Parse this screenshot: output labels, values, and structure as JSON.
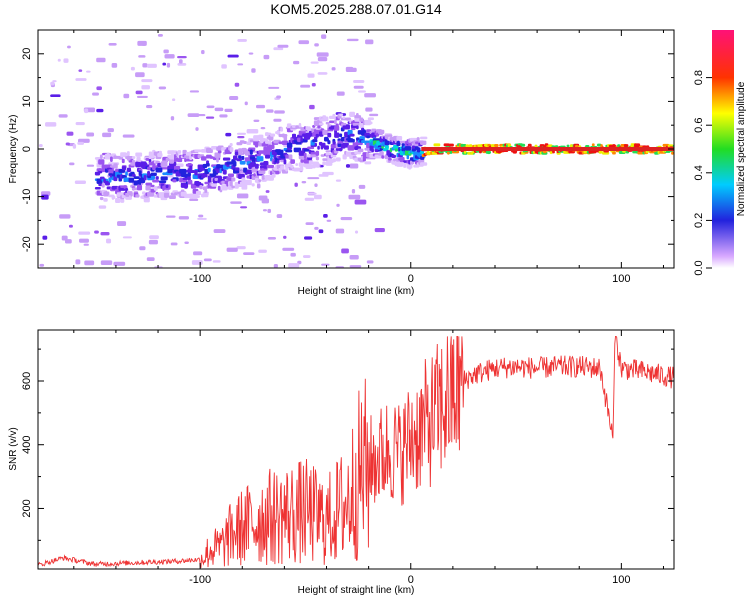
{
  "title": "KOM5.2025.288.07.01.G14",
  "chart_data": [
    {
      "type": "heatmap",
      "xlabel": "Height of straight line (km)",
      "ylabel": "Frequency (Hz)",
      "xlim": [
        -177,
        125
      ],
      "ylim": [
        -25,
        25
      ],
      "xticks": [
        -100,
        0,
        100
      ],
      "yticks": [
        -20,
        -10,
        0,
        10,
        20
      ],
      "colorbar": {
        "label": "Normalized spectral amplitude",
        "range": [
          0.0,
          1.0
        ],
        "ticks": [
          "0.0",
          "0.2",
          "0.4",
          "0.6",
          "0.8"
        ],
        "tick_values": [
          0.0,
          0.2,
          0.4,
          0.6,
          0.8
        ]
      },
      "ridge": {
        "x": [
          -140,
          -120,
          -100,
          -90,
          -80,
          -70,
          -60,
          -50,
          -40,
          -30,
          -20,
          -10,
          0,
          10,
          20,
          50,
          100,
          125
        ],
        "y": [
          -6,
          -5.5,
          -5,
          -4,
          -3,
          -2,
          0,
          1,
          2,
          3,
          1.5,
          0,
          -1,
          0,
          0,
          0,
          0,
          0
        ]
      }
    },
    {
      "type": "line",
      "xlabel": "Height of straight line (km)",
      "ylabel": "SNR (v/v)",
      "xlim": [
        -177,
        125
      ],
      "ylim": [
        10,
        760
      ],
      "xticks": [
        -100,
        0,
        100
      ],
      "yticks": [
        200,
        400,
        600
      ],
      "color": "#ee3333",
      "x": [
        -177,
        -165,
        -150,
        -130,
        -110,
        -100,
        -95,
        -90,
        -85,
        -80,
        -70,
        -60,
        -50,
        -40,
        -30,
        -25,
        -20,
        -15,
        -10,
        -5,
        0,
        5,
        10,
        15,
        20,
        25,
        30,
        40,
        50,
        60,
        70,
        80,
        90,
        96,
        97,
        100,
        110,
        125
      ],
      "values": [
        22,
        45,
        25,
        30,
        35,
        40,
        70,
        80,
        120,
        140,
        170,
        180,
        190,
        160,
        220,
        300,
        340,
        360,
        390,
        370,
        420,
        450,
        480,
        520,
        560,
        600,
        620,
        640,
        645,
        640,
        645,
        645,
        640,
        420,
        750,
        640,
        630,
        610
      ]
    }
  ]
}
